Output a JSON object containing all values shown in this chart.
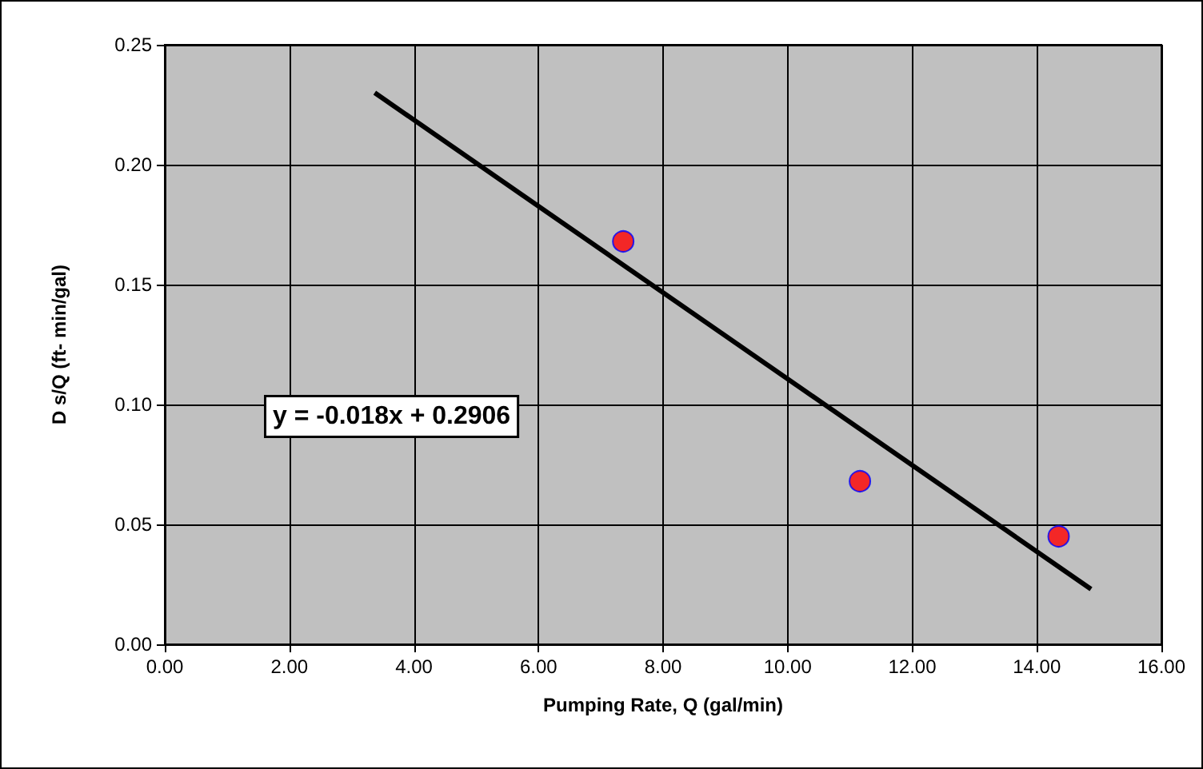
{
  "chart_data": {
    "type": "scatter",
    "xlabel": "Pumping Rate, Q (gal/min)",
    "ylabel": "D s/Q (ft- min/gal)",
    "annotations": [
      "y = -0.018x + 0.2906"
    ],
    "series": [
      {
        "color": "#ff0000",
        "x": [
          7.36,
          11.16,
          14.35
        ],
        "values": [
          0.168,
          0.068,
          0.045
        ],
        "marker": "circle"
      },
      {
        "type": "line",
        "color": "#000000",
        "x": [
          3.37,
          14.87
        ],
        "values": [
          0.23,
          0.023
        ],
        "marker": "none"
      }
    ],
    "xlim": [
      0,
      16
    ],
    "xticks": [
      {
        "value": 0,
        "label": "0.00"
      },
      {
        "value": 2,
        "label": "2.00"
      },
      {
        "value": 4,
        "label": "4.00"
      },
      {
        "value": 6,
        "label": "6.00"
      },
      {
        "value": 8,
        "label": "8.00"
      },
      {
        "value": 10,
        "label": "10.00"
      },
      {
        "value": 12,
        "label": "12.00"
      },
      {
        "value": 14,
        "label": "14.00"
      },
      {
        "value": 16,
        "label": "16.00"
      }
    ],
    "ylim": [
      0,
      0.25
    ],
    "yticks": [
      {
        "value": 0,
        "label": "0.00"
      },
      {
        "value": 0.05,
        "label": "0.05"
      },
      {
        "value": 0.1,
        "label": "0.10"
      },
      {
        "value": 0.15,
        "label": "0.15"
      },
      {
        "value": 0.2,
        "label": "0.20"
      },
      {
        "value": 0.25,
        "label": "0.25"
      }
    ],
    "grid": true
  }
}
